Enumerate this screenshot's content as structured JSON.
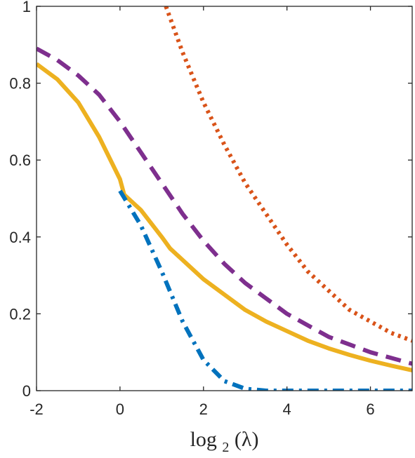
{
  "chart_data": {
    "type": "line",
    "title": "",
    "xlabel": "log",
    "xlabel_sub": "2",
    "xlabel_arg": "(λ)",
    "ylabel": "",
    "xlim": [
      -2,
      7
    ],
    "ylim": [
      0,
      1
    ],
    "xticks": [
      -2,
      0,
      2,
      4,
      6
    ],
    "xtick_labels": [
      "-2",
      "0",
      "2",
      "4",
      "6"
    ],
    "yticks": [
      0,
      0.2,
      0.4,
      0.6,
      0.8,
      1
    ],
    "ytick_labels": [
      "0",
      "0.2",
      "0.4",
      "0.6",
      "0.8",
      "1"
    ],
    "grid": false,
    "legend": "none",
    "series": [
      {
        "style": "dotted",
        "color": "#D95319",
        "x": [
          1.1,
          1.5,
          2.0,
          2.5,
          3.0,
          3.5,
          4.0,
          4.5,
          5.0,
          5.5,
          6.0,
          6.5,
          7.0
        ],
        "y": [
          1.0,
          0.88,
          0.75,
          0.64,
          0.54,
          0.46,
          0.38,
          0.31,
          0.26,
          0.21,
          0.18,
          0.15,
          0.13
        ]
      },
      {
        "style": "dashed",
        "color": "#7E2F8E",
        "x": [
          -2.0,
          -1.5,
          -1.0,
          -0.5,
          0.0,
          0.5,
          1.0,
          1.5,
          2.0,
          2.5,
          3.0,
          3.5,
          4.0,
          4.5,
          5.0,
          5.5,
          6.0,
          6.5,
          7.0
        ],
        "y": [
          0.89,
          0.86,
          0.82,
          0.77,
          0.7,
          0.62,
          0.54,
          0.46,
          0.39,
          0.33,
          0.28,
          0.24,
          0.2,
          0.17,
          0.14,
          0.12,
          0.1,
          0.085,
          0.07
        ]
      },
      {
        "style": "solid",
        "color": "#EDB120",
        "x": [
          -2.0,
          -1.5,
          -1.0,
          -0.5,
          0.0,
          0.1,
          0.5,
          1.0,
          1.2,
          1.5,
          2.0,
          2.5,
          3.0,
          3.5,
          4.0,
          4.5,
          5.0,
          5.5,
          6.0,
          6.5,
          7.0
        ],
        "y": [
          0.85,
          0.81,
          0.75,
          0.66,
          0.55,
          0.51,
          0.47,
          0.4,
          0.37,
          0.34,
          0.29,
          0.25,
          0.21,
          0.18,
          0.155,
          0.13,
          0.11,
          0.093,
          0.078,
          0.065,
          0.053
        ]
      },
      {
        "style": "dashdot",
        "color": "#0072BD",
        "x": [
          0.0,
          0.5,
          1.0,
          1.5,
          2.0,
          2.5,
          3.0,
          3.5,
          4.0,
          5.0,
          6.0,
          7.0
        ],
        "y": [
          0.52,
          0.43,
          0.31,
          0.18,
          0.08,
          0.025,
          0.005,
          0.0,
          0.0,
          0.0,
          0.0,
          0.0
        ]
      }
    ]
  }
}
